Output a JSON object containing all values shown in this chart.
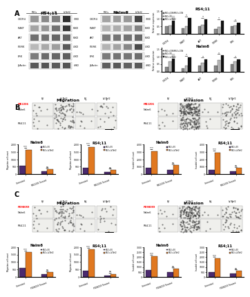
{
  "panel_A": {
    "wb_title_left": "RS4;11",
    "wb_title_right": "Nalm6",
    "wb_labels": [
      "CXCR4",
      "P-AKT",
      "AKT",
      "P-ERK",
      "ERK",
      "β-Actin"
    ],
    "wb_kda": [
      "70KD",
      "65KD",
      "65KD",
      "45KD",
      "45KD",
      "43KD"
    ],
    "wb_groups": [
      "MSCs",
      "CON",
      "EV",
      "LV-Nrf2"
    ],
    "bar_title_top": "RS4;11",
    "bar_title_bottom": "Nalm6",
    "bar_categories": [
      "CXCR4",
      "P-AKT",
      "AKT",
      "P-ERK",
      "ERK"
    ],
    "bar_colors": [
      "#888888",
      "#bbbbbb",
      "#111111"
    ],
    "rs411_values": [
      [
        0.5,
        0.55,
        1.2
      ],
      [
        0.35,
        0.5,
        1.05
      ],
      [
        0.5,
        0.6,
        0.95
      ],
      [
        0.3,
        0.45,
        0.85
      ],
      [
        0.5,
        0.55,
        0.75
      ]
    ],
    "nalm6_values": [
      [
        0.28,
        0.65,
        1.15
      ],
      [
        0.2,
        0.38,
        0.92
      ],
      [
        0.38,
        0.58,
        0.82
      ],
      [
        0.4,
        0.75,
        1.05
      ],
      [
        0.5,
        0.65,
        0.82
      ]
    ],
    "legend_labels_A": [
      "MSCs-CON/MSCs-CON",
      "MSCs-EV",
      "MSCs-LV-Nrf2"
    ]
  },
  "panel_B": {
    "title_left": "Migration",
    "title_right": "Invasion",
    "inhibitor": "MK2206",
    "inhibitor_color": "#FF0000",
    "cell_lines": [
      "Nalm6",
      "RS4;11"
    ],
    "migration_nalm6": {
      "groups": [
        "Untreated",
        "MK2206 Treated"
      ],
      "ev_vals": [
        580,
        210
      ],
      "lv_vals": [
        1650,
        340
      ],
      "ylim": [
        0,
        2000
      ],
      "yticks": [
        0,
        500,
        1000,
        1500,
        2000
      ],
      "ylabel": "Migration cell count"
    },
    "migration_rs411": {
      "groups": [
        "Untreated",
        "MK2206 Treated"
      ],
      "ev_vals": [
        420,
        145
      ],
      "lv_vals": [
        1820,
        290
      ],
      "ylim": [
        0,
        2000
      ],
      "yticks": [
        0,
        500,
        1000,
        1500,
        2000
      ],
      "ylabel": "Migration cell count"
    },
    "invasion_nalm6": {
      "groups": [
        "Untreated",
        "MK2206 Treated"
      ],
      "ev_vals": [
        820,
        620
      ],
      "lv_vals": [
        3100,
        1200
      ],
      "ylim": [
        0,
        4000
      ],
      "yticks": [
        0,
        1000,
        2000,
        3000,
        4000
      ],
      "ylabel": "Invaded cell count"
    },
    "invasion_rs411": {
      "groups": [
        "Untreated",
        "MK2206 Treated"
      ],
      "ev_vals": [
        620,
        420
      ],
      "lv_vals": [
        2900,
        820
      ],
      "ylim": [
        0,
        4000
      ],
      "yticks": [
        0,
        1000,
        2000,
        3000,
        4000
      ],
      "ylabel": "Invaded cell count"
    }
  },
  "panel_C": {
    "title_left": "Migration",
    "title_right": "Invasion",
    "inhibitor": "PD98059",
    "inhibitor_color": "#FF0000",
    "cell_lines": [
      "Nalm6",
      "RS4;11"
    ],
    "migration_nalm6": {
      "groups": [
        "Untreated",
        "PD98059 Treated"
      ],
      "ev_vals": [
        590,
        195
      ],
      "lv_vals": [
        1640,
        305
      ],
      "ylim": [
        0,
        2000
      ],
      "yticks": [
        0,
        500,
        1000,
        1500,
        2000
      ],
      "ylabel": "Migration cell count"
    },
    "migration_rs411": {
      "groups": [
        "Untreated",
        "PD98059 Treated"
      ],
      "ev_vals": [
        415,
        95
      ],
      "lv_vals": [
        1830,
        195
      ],
      "ylim": [
        0,
        2000
      ],
      "yticks": [
        0,
        500,
        1000,
        1500,
        2000
      ],
      "ylabel": "Migration cell count"
    },
    "invasion_nalm6": {
      "groups": [
        "Untreated",
        "PD98059 Treated"
      ],
      "ev_vals": [
        720,
        510
      ],
      "lv_vals": [
        2050,
        820
      ],
      "ylim": [
        0,
        3000
      ],
      "yticks": [
        0,
        1000,
        2000,
        3000
      ],
      "ylabel": "Invaded cell count"
    },
    "invasion_rs411": {
      "groups": [
        "Untreated",
        "PD98059 Treated"
      ],
      "ev_vals": [
        510,
        310
      ],
      "lv_vals": [
        1850,
        620
      ],
      "ylim": [
        0,
        3000
      ],
      "yticks": [
        0,
        1000,
        2000,
        3000
      ],
      "ylabel": "Invaded cell count"
    }
  },
  "bar_ev_color": "#4b2a6e",
  "bar_lv_color": "#e07820",
  "legend_labels": [
    "MSCs-EV",
    "MSCs-LV-Nrf2"
  ],
  "bg_color": "#ffffff",
  "micro_cell_colors": {
    "nalm6_ev_untreated": 30,
    "nalm6_lv_untreated": 180,
    "rs411_ev_untreated": 25,
    "rs411_lv_untreated": 120,
    "nalm6_ev_treated": 8,
    "nalm6_lv_treated": 15,
    "rs411_ev_treated": 10,
    "rs411_lv_treated": 18
  }
}
